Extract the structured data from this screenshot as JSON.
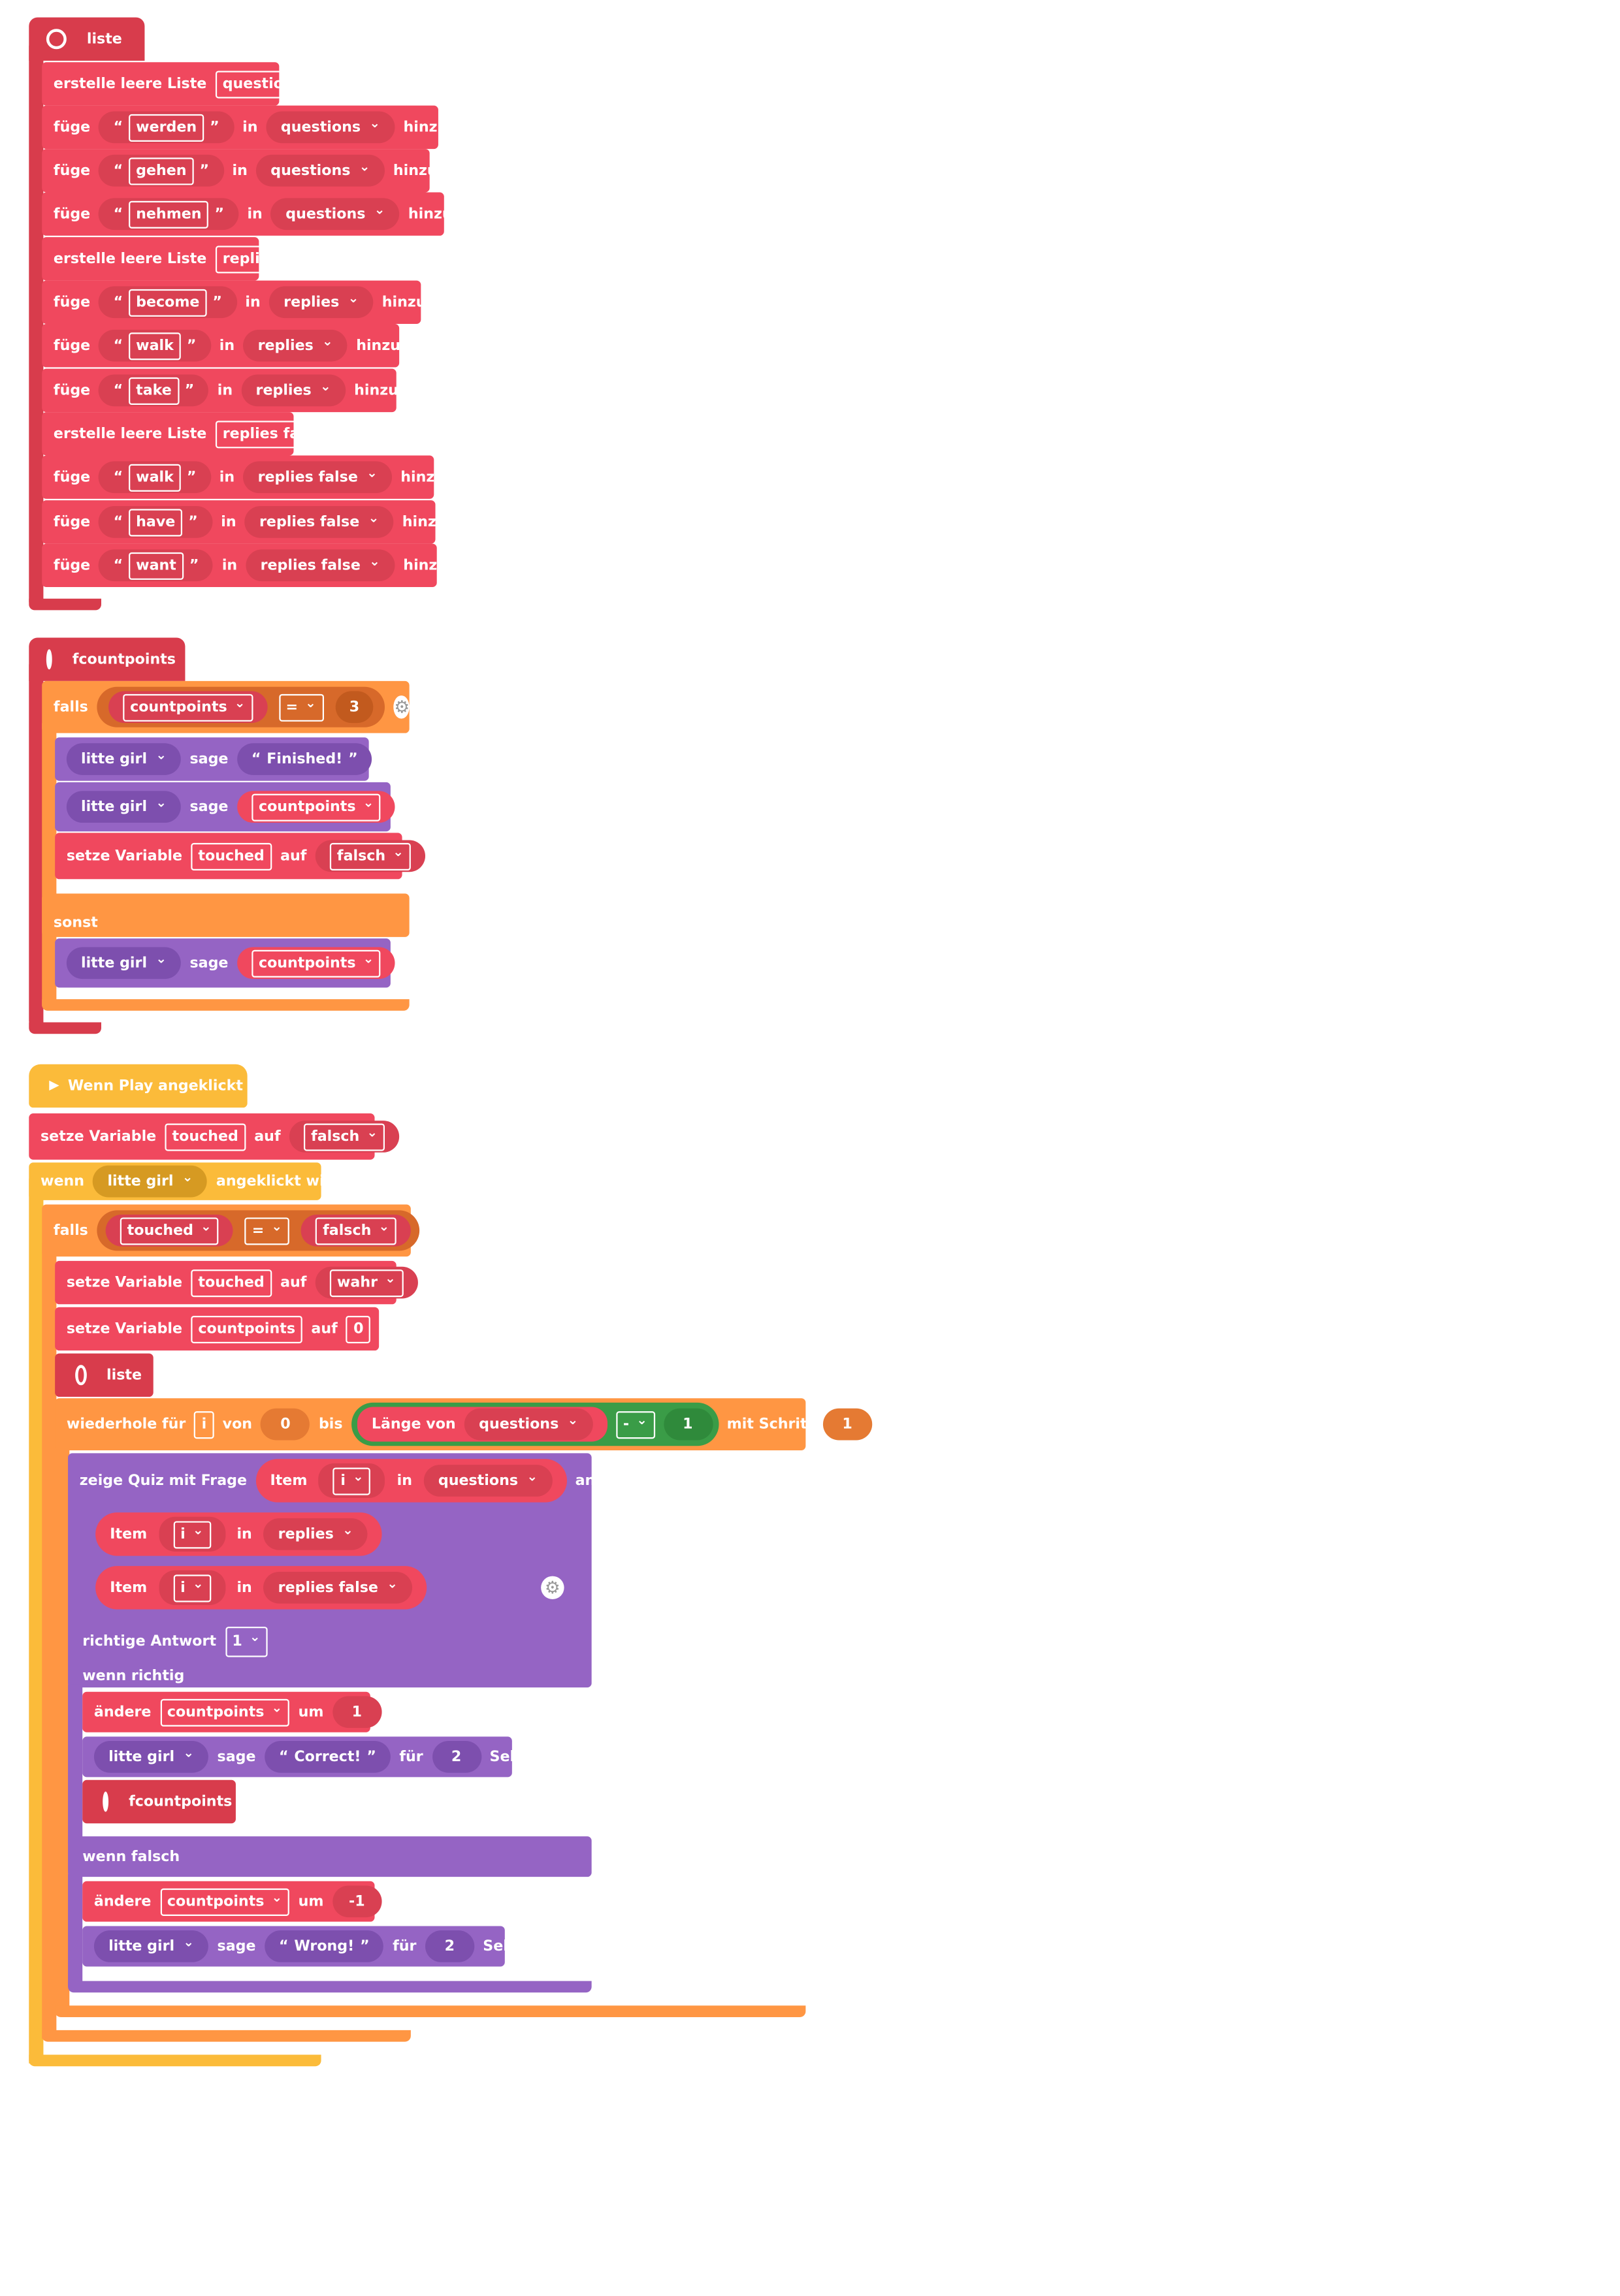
{
  "liste_block": {
    "header": "liste",
    "create_questions": {
      "label": "erstelle leere Liste",
      "name": "questions"
    },
    "q_rows": [
      {
        "verb": "füge",
        "value": "werden",
        "in": "in",
        "list": "questions",
        "end": "hinzu"
      },
      {
        "verb": "füge",
        "value": "gehen",
        "in": "in",
        "list": "questions",
        "end": "hinzu"
      },
      {
        "verb": "füge",
        "value": "nehmen",
        "in": "in",
        "list": "questions",
        "end": "hinzu"
      }
    ],
    "create_replies": {
      "label": "erstelle leere Liste",
      "name": "replies"
    },
    "r_rows": [
      {
        "verb": "füge",
        "value": "become",
        "in": "in",
        "list": "replies",
        "end": "hinzu"
      },
      {
        "verb": "füge",
        "value": "walk",
        "in": "in",
        "list": "replies",
        "end": "hinzu"
      },
      {
        "verb": "füge",
        "value": "take",
        "in": "in",
        "list": "replies",
        "end": "hinzu"
      }
    ],
    "create_replies_false": {
      "label": "erstelle leere Liste",
      "name": "replies false"
    },
    "rf_rows": [
      {
        "verb": "füge",
        "value": "walk",
        "in": "in",
        "list": "replies false",
        "end": "hinzu"
      },
      {
        "verb": "füge",
        "value": "have",
        "in": "in",
        "list": "replies false",
        "end": "hinzu"
      },
      {
        "verb": "füge",
        "value": "want",
        "in": "in",
        "list": "replies false",
        "end": "hinzu"
      }
    ]
  },
  "fcount_block": {
    "header": "fcountpoints",
    "if_label": "falls",
    "cond_var": "countpoints",
    "cond_op": "=",
    "cond_val": "3",
    "say1": {
      "sprite": "litte girl",
      "verb": "sage",
      "text": "Finished!"
    },
    "say2": {
      "sprite": "litte girl",
      "verb": "sage",
      "var": "countpoints"
    },
    "setvar": {
      "label": "setze Variable",
      "var": "touched",
      "to": "auf",
      "val": "falsch"
    },
    "else_label": "sonst",
    "say3": {
      "sprite": "litte girl",
      "verb": "sage",
      "var": "countpoints"
    }
  },
  "main_block": {
    "hat": "Wenn Play angeklickt",
    "setvar1": {
      "label": "setze Variable",
      "var": "touched",
      "to": "auf",
      "val": "falsch"
    },
    "when": {
      "label": "wenn",
      "sprite": "litte girl",
      "event": "angeklickt wird"
    },
    "if_label": "falls",
    "cond_var": "touched",
    "cond_op": "=",
    "cond_val": "falsch",
    "setvar2": {
      "label": "setze Variable",
      "var": "touched",
      "to": "auf",
      "val": "wahr"
    },
    "setvar3": {
      "label": "setze Variable",
      "var": "countpoints",
      "to": "auf",
      "val": "0"
    },
    "call_liste": "liste",
    "loop": {
      "label": "wiederhole für",
      "var": "i",
      "from": "von",
      "from_val": "0",
      "to": "bis",
      "len_label": "Länge von",
      "len_list": "questions",
      "op": "-",
      "op_val": "1",
      "step_label": "mit Schritt",
      "step_val": "1"
    },
    "quiz": {
      "label": "zeige Quiz mit Frage",
      "item": "Item",
      "idx": "i",
      "in": "in",
      "list": "questions",
      "an": "an",
      "opt1": {
        "item": "Item",
        "idx": "i",
        "in": "in",
        "list": "replies"
      },
      "opt2": {
        "item": "Item",
        "idx": "i",
        "in": "in",
        "list": "replies false"
      },
      "correct_label": "richtige Antwort",
      "correct_val": "1",
      "if_right": "wenn richtig",
      "change1": {
        "label": "ändere",
        "var": "countpoints",
        "by": "um",
        "val": "1"
      },
      "say_right": {
        "sprite": "litte girl",
        "verb": "sage",
        "text": "Correct!",
        "for": "für",
        "secs": "2",
        "unit": "Sek."
      },
      "call_fcount": "fcountpoints",
      "if_wrong": "wenn falsch",
      "change2": {
        "label": "ändere",
        "var": "countpoints",
        "by": "um",
        "val": "-1"
      },
      "say_wrong": {
        "sprite": "litte girl",
        "verb": "sage",
        "text": "Wrong!",
        "for": "für",
        "secs": "2",
        "unit": "Sek."
      }
    }
  },
  "colors": {
    "list_red": "#f0485e",
    "proc_red": "#d83c4c",
    "control_orange": "#ff9643",
    "looks_purple": "#9564c4",
    "event_yellow": "#fbbb3a",
    "operator_green": "#3a9c47"
  }
}
